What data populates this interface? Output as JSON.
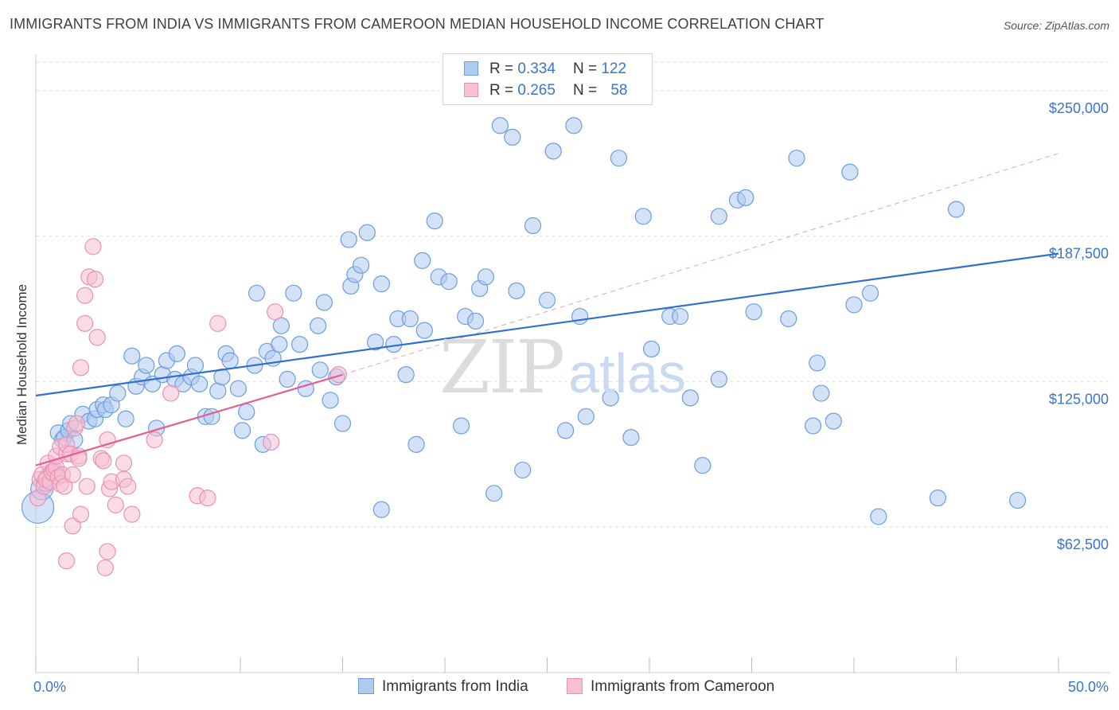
{
  "header": {
    "title": "IMMIGRANTS FROM INDIA VS IMMIGRANTS FROM CAMEROON MEDIAN HOUSEHOLD INCOME CORRELATION CHART",
    "source": "Source: ZipAtlas.com"
  },
  "legend": {
    "r_label": "R =",
    "n_label": "N =",
    "india": {
      "r": "0.334",
      "n": "122"
    },
    "cameroon": {
      "r": "0.265",
      "n": "58"
    }
  },
  "watermark": {
    "zip": "ZIP",
    "atlas": "atlas"
  },
  "colors": {
    "india_fill": "#aecbf0",
    "india_stroke": "#6b9de0",
    "india_line": "#2f6fce",
    "cameroon_fill": "#f6c0d2",
    "cameroon_stroke": "#ec8fb0",
    "cameroon_line": "#e0608e",
    "axis_text": "#3a74cc"
  },
  "chart_data": {
    "type": "scatter",
    "title": "IMMIGRANTS FROM INDIA VS IMMIGRANTS FROM CAMEROON MEDIAN HOUSEHOLD INCOME CORRELATION CHART",
    "xlabel": "",
    "ylabel": "Median Household Income",
    "xlim": [
      0,
      50
    ],
    "ylim": [
      0,
      265000
    ],
    "x_tick_labels": [
      "0.0%",
      "50.0%"
    ],
    "y_ticks": [
      62500,
      125000,
      187500,
      250000
    ],
    "y_tick_labels": [
      "$62,500",
      "$125,000",
      "$187,500",
      "$250,000"
    ],
    "grid": true,
    "series": [
      {
        "name": "Immigrants from India",
        "trend": {
          "x": [
            0,
            50
          ],
          "y": [
            119000,
            180000
          ]
        },
        "points": [
          [
            0.1,
            71000,
            20
          ],
          [
            0.3,
            79000,
            14
          ],
          [
            0.5,
            82000,
            12
          ],
          [
            0.8,
            86000,
            11
          ],
          [
            0.6,
            84000,
            11
          ],
          [
            1.0,
            85000,
            11
          ],
          [
            1.1,
            103000,
            10
          ],
          [
            1.3,
            100000,
            10
          ],
          [
            1.4,
            101000,
            10
          ],
          [
            1.6,
            104000,
            10
          ],
          [
            1.7,
            107000,
            10
          ],
          [
            1.9,
            100000,
            10
          ],
          [
            2.3,
            111000,
            10
          ],
          [
            2.6,
            108000,
            10
          ],
          [
            2.9,
            109000,
            10
          ],
          [
            3.0,
            113000,
            10
          ],
          [
            3.3,
            115000,
            10
          ],
          [
            3.4,
            113000,
            10
          ],
          [
            3.7,
            115000,
            10
          ],
          [
            4.0,
            120000,
            10
          ],
          [
            4.4,
            109000,
            10
          ],
          [
            4.7,
            136000,
            10
          ],
          [
            4.9,
            123000,
            10
          ],
          [
            5.2,
            127000,
            10
          ],
          [
            5.4,
            132000,
            10
          ],
          [
            5.7,
            124000,
            10
          ],
          [
            5.9,
            105000,
            10
          ],
          [
            6.2,
            128000,
            10
          ],
          [
            6.4,
            134000,
            10
          ],
          [
            6.8,
            126000,
            10
          ],
          [
            6.9,
            137000,
            10
          ],
          [
            7.2,
            124000,
            10
          ],
          [
            7.6,
            127000,
            10
          ],
          [
            7.8,
            132000,
            10
          ],
          [
            8.0,
            124000,
            10
          ],
          [
            8.3,
            110000,
            10
          ],
          [
            8.6,
            110000,
            10
          ],
          [
            8.9,
            121000,
            10
          ],
          [
            9.1,
            127000,
            10
          ],
          [
            9.3,
            137000,
            10
          ],
          [
            9.5,
            134000,
            10
          ],
          [
            9.9,
            122000,
            10
          ],
          [
            10.1,
            104000,
            10
          ],
          [
            10.3,
            112000,
            10
          ],
          [
            10.7,
            132000,
            10
          ],
          [
            10.8,
            163000,
            10
          ],
          [
            11.1,
            98000,
            10
          ],
          [
            11.3,
            138000,
            10
          ],
          [
            11.6,
            135000,
            10
          ],
          [
            11.9,
            141000,
            10
          ],
          [
            12.0,
            149000,
            10
          ],
          [
            12.3,
            126000,
            10
          ],
          [
            12.6,
            163000,
            10
          ],
          [
            12.9,
            141000,
            10
          ],
          [
            13.2,
            122000,
            10
          ],
          [
            13.8,
            149000,
            10
          ],
          [
            13.9,
            130000,
            10
          ],
          [
            14.1,
            159000,
            10
          ],
          [
            14.4,
            117000,
            10
          ],
          [
            14.7,
            127000,
            10
          ],
          [
            15.0,
            107000,
            10
          ],
          [
            15.3,
            186000,
            10
          ],
          [
            15.4,
            166000,
            10
          ],
          [
            15.6,
            171000,
            10
          ],
          [
            15.9,
            175000,
            10
          ],
          [
            16.2,
            189000,
            10
          ],
          [
            16.6,
            142000,
            10
          ],
          [
            16.9,
            167000,
            10
          ],
          [
            16.9,
            70000,
            10
          ],
          [
            17.5,
            141000,
            10
          ],
          [
            17.7,
            152000,
            10
          ],
          [
            18.1,
            128000,
            10
          ],
          [
            18.3,
            152000,
            10
          ],
          [
            18.6,
            98000,
            10
          ],
          [
            18.9,
            177000,
            10
          ],
          [
            19.0,
            147000,
            10
          ],
          [
            19.5,
            194000,
            10
          ],
          [
            19.7,
            170000,
            10
          ],
          [
            20.2,
            168000,
            10
          ],
          [
            20.8,
            106000,
            10
          ],
          [
            21.0,
            153000,
            10
          ],
          [
            21.5,
            151000,
            10
          ],
          [
            21.7,
            165000,
            10
          ],
          [
            22.0,
            170000,
            10
          ],
          [
            22.4,
            77000,
            10
          ],
          [
            22.7,
            235000,
            10
          ],
          [
            23.3,
            230000,
            10
          ],
          [
            23.5,
            164000,
            10
          ],
          [
            23.8,
            87000,
            10
          ],
          [
            24.3,
            192000,
            10
          ],
          [
            25.0,
            160000,
            10
          ],
          [
            25.3,
            224000,
            10
          ],
          [
            25.9,
            104000,
            10
          ],
          [
            26.3,
            235000,
            10
          ],
          [
            26.6,
            153000,
            10
          ],
          [
            26.9,
            110000,
            10
          ],
          [
            28.1,
            118000,
            10
          ],
          [
            28.5,
            221000,
            10
          ],
          [
            29.1,
            101000,
            10
          ],
          [
            29.7,
            196000,
            10
          ],
          [
            30.1,
            139000,
            10
          ],
          [
            31.0,
            153000,
            10
          ],
          [
            31.5,
            153000,
            10
          ],
          [
            32.0,
            118000,
            10
          ],
          [
            32.6,
            89000,
            10
          ],
          [
            33.4,
            196000,
            10
          ],
          [
            33.4,
            126000,
            10
          ],
          [
            34.3,
            203000,
            10
          ],
          [
            34.7,
            204000,
            10
          ],
          [
            35.1,
            155000,
            10
          ],
          [
            36.8,
            152000,
            10
          ],
          [
            37.2,
            221000,
            10
          ],
          [
            38.0,
            106000,
            10
          ],
          [
            38.2,
            133000,
            10
          ],
          [
            38.4,
            120000,
            10
          ],
          [
            39.0,
            108000,
            10
          ],
          [
            39.8,
            215000,
            10
          ],
          [
            40.0,
            158000,
            10
          ],
          [
            40.8,
            163000,
            10
          ],
          [
            41.2,
            67000,
            10
          ],
          [
            44.1,
            75000,
            10
          ],
          [
            45.0,
            199000,
            10
          ],
          [
            48.0,
            74000,
            10
          ]
        ]
      },
      {
        "name": "Immigrants from Cameroon",
        "trend": {
          "x": [
            0,
            15
          ],
          "y": [
            89000,
            128000
          ]
        },
        "extrapolation": {
          "x": [
            15,
            50
          ],
          "y": [
            128000,
            223000
          ]
        },
        "points": [
          [
            0.1,
            75000,
            10
          ],
          [
            0.2,
            83000,
            10
          ],
          [
            0.3,
            85000,
            10
          ],
          [
            0.4,
            80000,
            10
          ],
          [
            0.5,
            83000,
            10
          ],
          [
            0.6,
            90000,
            10
          ],
          [
            0.7,
            82000,
            10
          ],
          [
            0.8,
            86000,
            10
          ],
          [
            0.9,
            87000,
            10
          ],
          [
            1.0,
            88000,
            10
          ],
          [
            1.0,
            93000,
            10
          ],
          [
            1.1,
            84000,
            10
          ],
          [
            1.2,
            81000,
            10
          ],
          [
            1.2,
            97000,
            10
          ],
          [
            1.3,
            85000,
            10
          ],
          [
            1.4,
            80000,
            10
          ],
          [
            1.5,
            94000,
            10
          ],
          [
            1.5,
            98000,
            10
          ],
          [
            1.5,
            48000,
            10
          ],
          [
            1.7,
            94000,
            10
          ],
          [
            1.8,
            85000,
            10
          ],
          [
            1.8,
            63000,
            10
          ],
          [
            1.9,
            105000,
            10
          ],
          [
            2.0,
            107000,
            10
          ],
          [
            2.1,
            93000,
            10
          ],
          [
            2.1,
            92000,
            10
          ],
          [
            2.2,
            68000,
            10
          ],
          [
            2.2,
            131000,
            10
          ],
          [
            2.4,
            150000,
            10
          ],
          [
            2.4,
            162000,
            10
          ],
          [
            2.5,
            80000,
            10
          ],
          [
            2.6,
            170000,
            10
          ],
          [
            2.8,
            183000,
            10
          ],
          [
            2.9,
            169000,
            10
          ],
          [
            3.0,
            144000,
            10
          ],
          [
            3.2,
            92000,
            10
          ],
          [
            3.3,
            91000,
            10
          ],
          [
            3.4,
            45000,
            10
          ],
          [
            3.5,
            52000,
            10
          ],
          [
            3.5,
            100000,
            10
          ],
          [
            3.6,
            79000,
            10
          ],
          [
            3.7,
            82000,
            10
          ],
          [
            3.9,
            72000,
            10
          ],
          [
            4.3,
            90000,
            10
          ],
          [
            4.3,
            83000,
            10
          ],
          [
            4.5,
            80000,
            10
          ],
          [
            4.7,
            68000,
            10
          ],
          [
            5.8,
            100000,
            10
          ],
          [
            6.6,
            120000,
            10
          ],
          [
            7.9,
            76000,
            10
          ],
          [
            8.4,
            75000,
            10
          ],
          [
            8.9,
            150000,
            10
          ],
          [
            11.5,
            99000,
            10
          ],
          [
            11.7,
            155000,
            10
          ],
          [
            14.8,
            128000,
            10
          ]
        ]
      }
    ],
    "legend_entries": [
      "Immigrants from India",
      "Immigrants from Cameroon"
    ]
  }
}
